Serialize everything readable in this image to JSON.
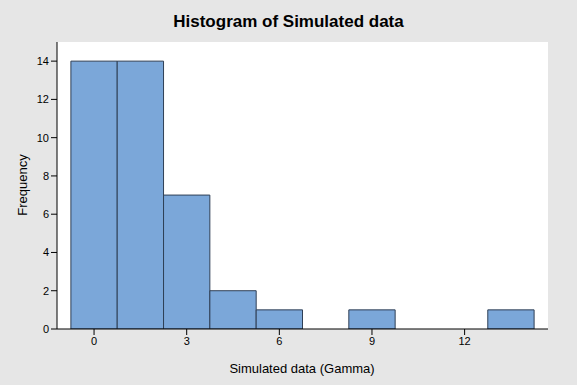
{
  "chart_data": {
    "type": "histogram",
    "title": "Histogram of Simulated data",
    "x_label": "Simulated data (Gamma)",
    "y_label": "Frequency",
    "bins": [
      -0.75,
      0.75,
      2.25,
      3.75,
      5.25,
      6.75,
      8.25,
      9.75,
      11.25,
      12.75,
      14.25
    ],
    "counts": [
      14,
      14,
      7,
      2,
      1,
      0,
      1,
      0,
      0,
      1
    ],
    "color": "#7ba7d9",
    "xlim": [
      -1.2,
      14.7
    ],
    "xticks": [
      0,
      3,
      6,
      9,
      12
    ],
    "ylim": [
      0,
      15
    ],
    "yticks": [
      0,
      2,
      4,
      6,
      8,
      10,
      12,
      14
    ],
    "grid": false
  }
}
